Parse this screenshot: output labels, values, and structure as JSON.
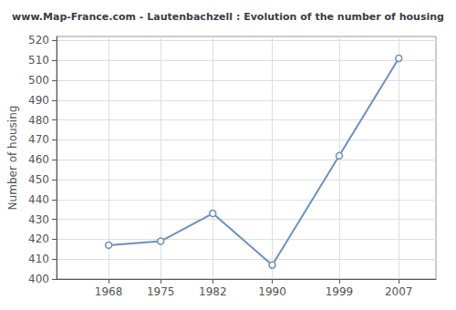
{
  "chart_data": {
    "type": "line",
    "title": "www.Map-France.com - Lautenbachzell : Evolution of the number of housing",
    "ylabel": "Number of housing",
    "x": [
      1968,
      1975,
      1982,
      1990,
      1999,
      2007
    ],
    "values": [
      417,
      419,
      433,
      407,
      462,
      511
    ],
    "color": "#6e8fbf",
    "marker": "circle",
    "xlim": [
      1961,
      2012
    ],
    "xticks": [
      1968,
      1975,
      1982,
      1990,
      1999,
      2007
    ],
    "ylim": [
      400,
      522
    ],
    "yticks": [
      400,
      410,
      420,
      430,
      440,
      450,
      460,
      470,
      480,
      490,
      500,
      510,
      520
    ],
    "grid": true
  }
}
